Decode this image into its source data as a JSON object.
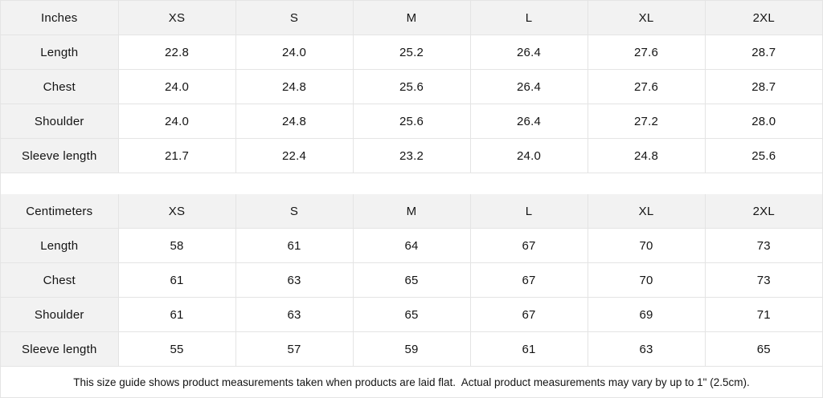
{
  "chart_data": [
    {
      "type": "table",
      "title": "Inches",
      "columns": [
        "Inches",
        "XS",
        "S",
        "M",
        "L",
        "XL",
        "2XL"
      ],
      "rows": [
        [
          "Length",
          "22.8",
          "24.0",
          "25.2",
          "26.4",
          "27.6",
          "28.7"
        ],
        [
          "Chest",
          "24.0",
          "24.8",
          "25.6",
          "26.4",
          "27.6",
          "28.7"
        ],
        [
          "Shoulder",
          "24.0",
          "24.8",
          "25.6",
          "26.4",
          "27.2",
          "28.0"
        ],
        [
          "Sleeve length",
          "21.7",
          "22.4",
          "23.2",
          "24.0",
          "24.8",
          "25.6"
        ]
      ]
    },
    {
      "type": "table",
      "title": "Centimeters",
      "columns": [
        "Centimeters",
        "XS",
        "S",
        "M",
        "L",
        "XL",
        "2XL"
      ],
      "rows": [
        [
          "Length",
          "58",
          "61",
          "64",
          "67",
          "70",
          "73"
        ],
        [
          "Chest",
          "61",
          "63",
          "65",
          "67",
          "70",
          "73"
        ],
        [
          "Shoulder",
          "61",
          "63",
          "65",
          "67",
          "69",
          "71"
        ],
        [
          "Sleeve length",
          "55",
          "57",
          "59",
          "61",
          "63",
          "65"
        ]
      ]
    }
  ],
  "footnote": "This size guide shows product measurements taken when products are laid flat.  Actual product measurements may vary by up to 1\" (2.5cm).",
  "colors": {
    "header_bg": "#f2f2f2",
    "border": "#e4e4e4",
    "text": "#141414",
    "background": "#ffffff"
  }
}
